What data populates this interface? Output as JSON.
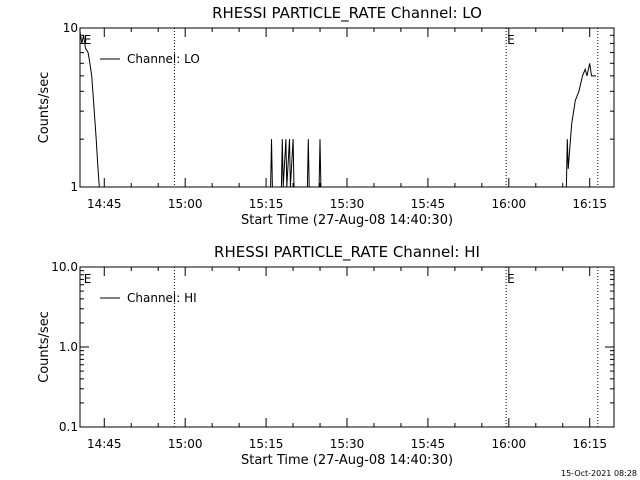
{
  "chart_data": [
    {
      "type": "line",
      "title": "RHESSI PARTICLE_RATE Channel: LO",
      "xlabel": "Start Time (27-Aug-08 14:40:30)",
      "ylabel": "Counts/sec",
      "ylog": true,
      "ylim": [
        1,
        10
      ],
      "xlim": [
        "14:40:30",
        "16:19:30"
      ],
      "x_ticks": [
        "14:45",
        "15:00",
        "15:15",
        "15:30",
        "15:45",
        "16:00",
        "16:15"
      ],
      "y_ticks": [
        "1",
        "10"
      ],
      "legend": {
        "label": "Channel: LO",
        "placement": "top-left"
      },
      "event_markers": [
        {
          "time": "14:41:00",
          "label": "E",
          "line": false
        },
        {
          "time": "14:58:00",
          "label": "",
          "line": true
        },
        {
          "time": "15:59:30",
          "label": "E",
          "line": true
        },
        {
          "time": "16:16:30",
          "label": "",
          "line": true
        }
      ],
      "series": [
        {
          "name": "Channel: LO",
          "segments": [
            [
              [
                "14:40:30",
                9.5
              ],
              [
                "14:40:50",
                8
              ],
              [
                "14:41:10",
                9
              ],
              [
                "14:41:30",
                7.5
              ],
              [
                "14:42:00",
                7
              ],
              [
                "14:42:20",
                6
              ],
              [
                "14:42:40",
                5
              ],
              [
                "14:43:00",
                3.5
              ],
              [
                "14:43:30",
                2
              ],
              [
                "14:43:50",
                1.3
              ],
              [
                "14:44:05",
                1
              ]
            ],
            [
              [
                "15:15:50",
                1
              ],
              [
                "15:16:00",
                2
              ],
              [
                "15:16:10",
                1
              ]
            ],
            [
              [
                "15:17:50",
                1
              ],
              [
                "15:18:00",
                2
              ],
              [
                "15:18:10",
                1
              ],
              [
                "15:18:40",
                2
              ],
              [
                "15:18:50",
                1
              ],
              [
                "15:19:20",
                2
              ],
              [
                "15:19:30",
                1
              ],
              [
                "15:20:00",
                2
              ],
              [
                "15:20:10",
                1
              ]
            ],
            [
              [
                "15:22:40",
                1
              ],
              [
                "15:22:50",
                2
              ],
              [
                "15:23:00",
                1
              ]
            ],
            [
              [
                "15:24:50",
                1
              ],
              [
                "15:25:00",
                2
              ],
              [
                "15:25:10",
                1
              ]
            ],
            [
              [
                "16:10:40",
                1
              ],
              [
                "16:10:50",
                2
              ],
              [
                "16:11:00",
                1.3
              ],
              [
                "16:11:40",
                2.5
              ],
              [
                "16:12:20",
                3.5
              ],
              [
                "16:13:00",
                4
              ],
              [
                "16:13:40",
                5
              ],
              [
                "16:14:10",
                5.5
              ],
              [
                "16:14:30",
                5
              ],
              [
                "16:15:00",
                6
              ],
              [
                "16:15:20",
                5
              ],
              [
                "16:16:10",
                5
              ]
            ]
          ]
        }
      ]
    },
    {
      "type": "line",
      "title": "RHESSI PARTICLE_RATE Channel: HI",
      "xlabel": "Start Time (27-Aug-08 14:40:30)",
      "ylabel": "Counts/sec",
      "ylog": true,
      "ylim": [
        0.1,
        10
      ],
      "xlim": [
        "14:40:30",
        "16:19:30"
      ],
      "x_ticks": [
        "14:45",
        "15:00",
        "15:15",
        "15:30",
        "15:45",
        "16:00",
        "16:15"
      ],
      "y_ticks": [
        "0.1",
        "1.0",
        "10.0"
      ],
      "legend": {
        "label": "Channel: HI",
        "placement": "top-left"
      },
      "event_markers": [
        {
          "time": "14:41:00",
          "label": "E",
          "line": false
        },
        {
          "time": "14:58:00",
          "label": "",
          "line": true
        },
        {
          "time": "15:59:30",
          "label": "E",
          "line": true
        },
        {
          "time": "16:16:30",
          "label": "",
          "line": true
        }
      ],
      "series": [
        {
          "name": "Channel: HI",
          "segments": []
        }
      ]
    }
  ],
  "footer": {
    "timestamp": "15-Oct-2021 08:28"
  }
}
